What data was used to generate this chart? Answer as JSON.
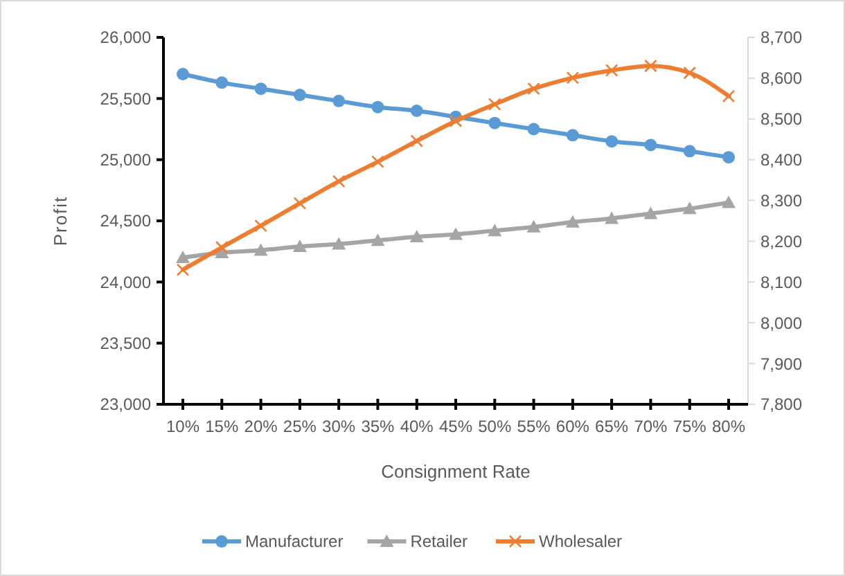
{
  "chart_data": {
    "type": "line",
    "xlabel": "Consignment Rate",
    "ylabel": "Profit",
    "categories": [
      "10%",
      "15%",
      "20%",
      "25%",
      "30%",
      "35%",
      "40%",
      "45%",
      "50%",
      "55%",
      "60%",
      "65%",
      "70%",
      "75%",
      "80%"
    ],
    "series": [
      {
        "name": "Manufacturer",
        "color": "#5b9bd5",
        "marker": "circle",
        "values": [
          25700,
          25630,
          25580,
          25530,
          25480,
          25430,
          25400,
          25350,
          25300,
          25250,
          25200,
          25150,
          25120,
          25070,
          25020
        ]
      },
      {
        "name": "Retailer",
        "color": "#a5a5a5",
        "marker": "triangle",
        "values": [
          24200,
          24240,
          24260,
          24290,
          24310,
          24340,
          24370,
          24390,
          24420,
          24450,
          24490,
          24520,
          24560,
          24600,
          24650
        ]
      },
      {
        "name": "Wholesaler",
        "color": "#ed7d31",
        "marker": "cross",
        "axis": "y2",
        "values": [
          8130,
          8185,
          8238,
          8293,
          8347,
          8395,
          8446,
          8495,
          8536,
          8574,
          8601,
          8619,
          8630,
          8613,
          8556
        ]
      }
    ],
    "ylim": [
      23000,
      26000
    ],
    "yticks": [
      {
        "value": 23000,
        "label": "23,000"
      },
      {
        "value": 23500,
        "label": "23,500"
      },
      {
        "value": 24000,
        "label": "24,000"
      },
      {
        "value": 24500,
        "label": "24,500"
      },
      {
        "value": 25000,
        "label": "25,000"
      },
      {
        "value": 25500,
        "label": "25,500"
      },
      {
        "value": 26000,
        "label": "26,000"
      }
    ],
    "y2lim": [
      7800,
      8700
    ],
    "y2ticks": [
      {
        "value": 7800,
        "label": "7,800"
      },
      {
        "value": 7900,
        "label": "7,900"
      },
      {
        "value": 8000,
        "label": "8,000"
      },
      {
        "value": 8100,
        "label": "8,100"
      },
      {
        "value": 8200,
        "label": "8,200"
      },
      {
        "value": 8300,
        "label": "8,300"
      },
      {
        "value": 8400,
        "label": "8,400"
      },
      {
        "value": 8500,
        "label": "8,500"
      },
      {
        "value": 8600,
        "label": "8,600"
      },
      {
        "value": 8700,
        "label": "8,700"
      }
    ],
    "grid": false,
    "legend": "bottom",
    "line_style": "solid"
  }
}
